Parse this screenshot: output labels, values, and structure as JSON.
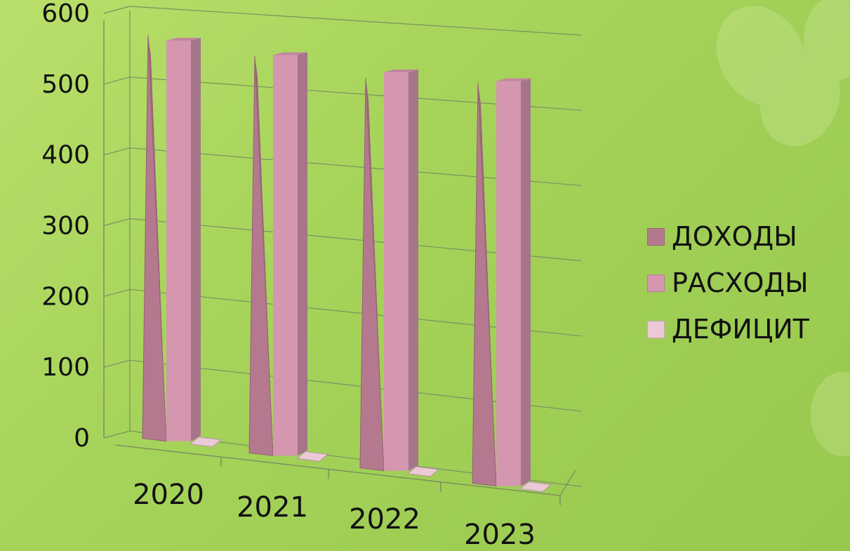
{
  "chart_data": {
    "type": "bar",
    "categories": [
      "2020",
      "2021",
      "2022",
      "2023"
    ],
    "series": [
      {
        "name": "ДОХОДЫ",
        "values": [
          562,
          553,
          543,
          558
        ],
        "color": "#b5798f"
      },
      {
        "name": "РАСХОДЫ",
        "values": [
          568,
          568,
          565,
          574
        ],
        "color": "#d596b0"
      },
      {
        "name": "ДЕФИЦИТ",
        "values": [
          0,
          0,
          0,
          0
        ],
        "color": "#ecc9d6"
      }
    ],
    "y_ticks": [
      "0",
      "100",
      "200",
      "300",
      "400",
      "500",
      "600"
    ],
    "ylim": [
      0,
      600
    ],
    "grid": true,
    "legend_position": "right",
    "style": "3d"
  }
}
